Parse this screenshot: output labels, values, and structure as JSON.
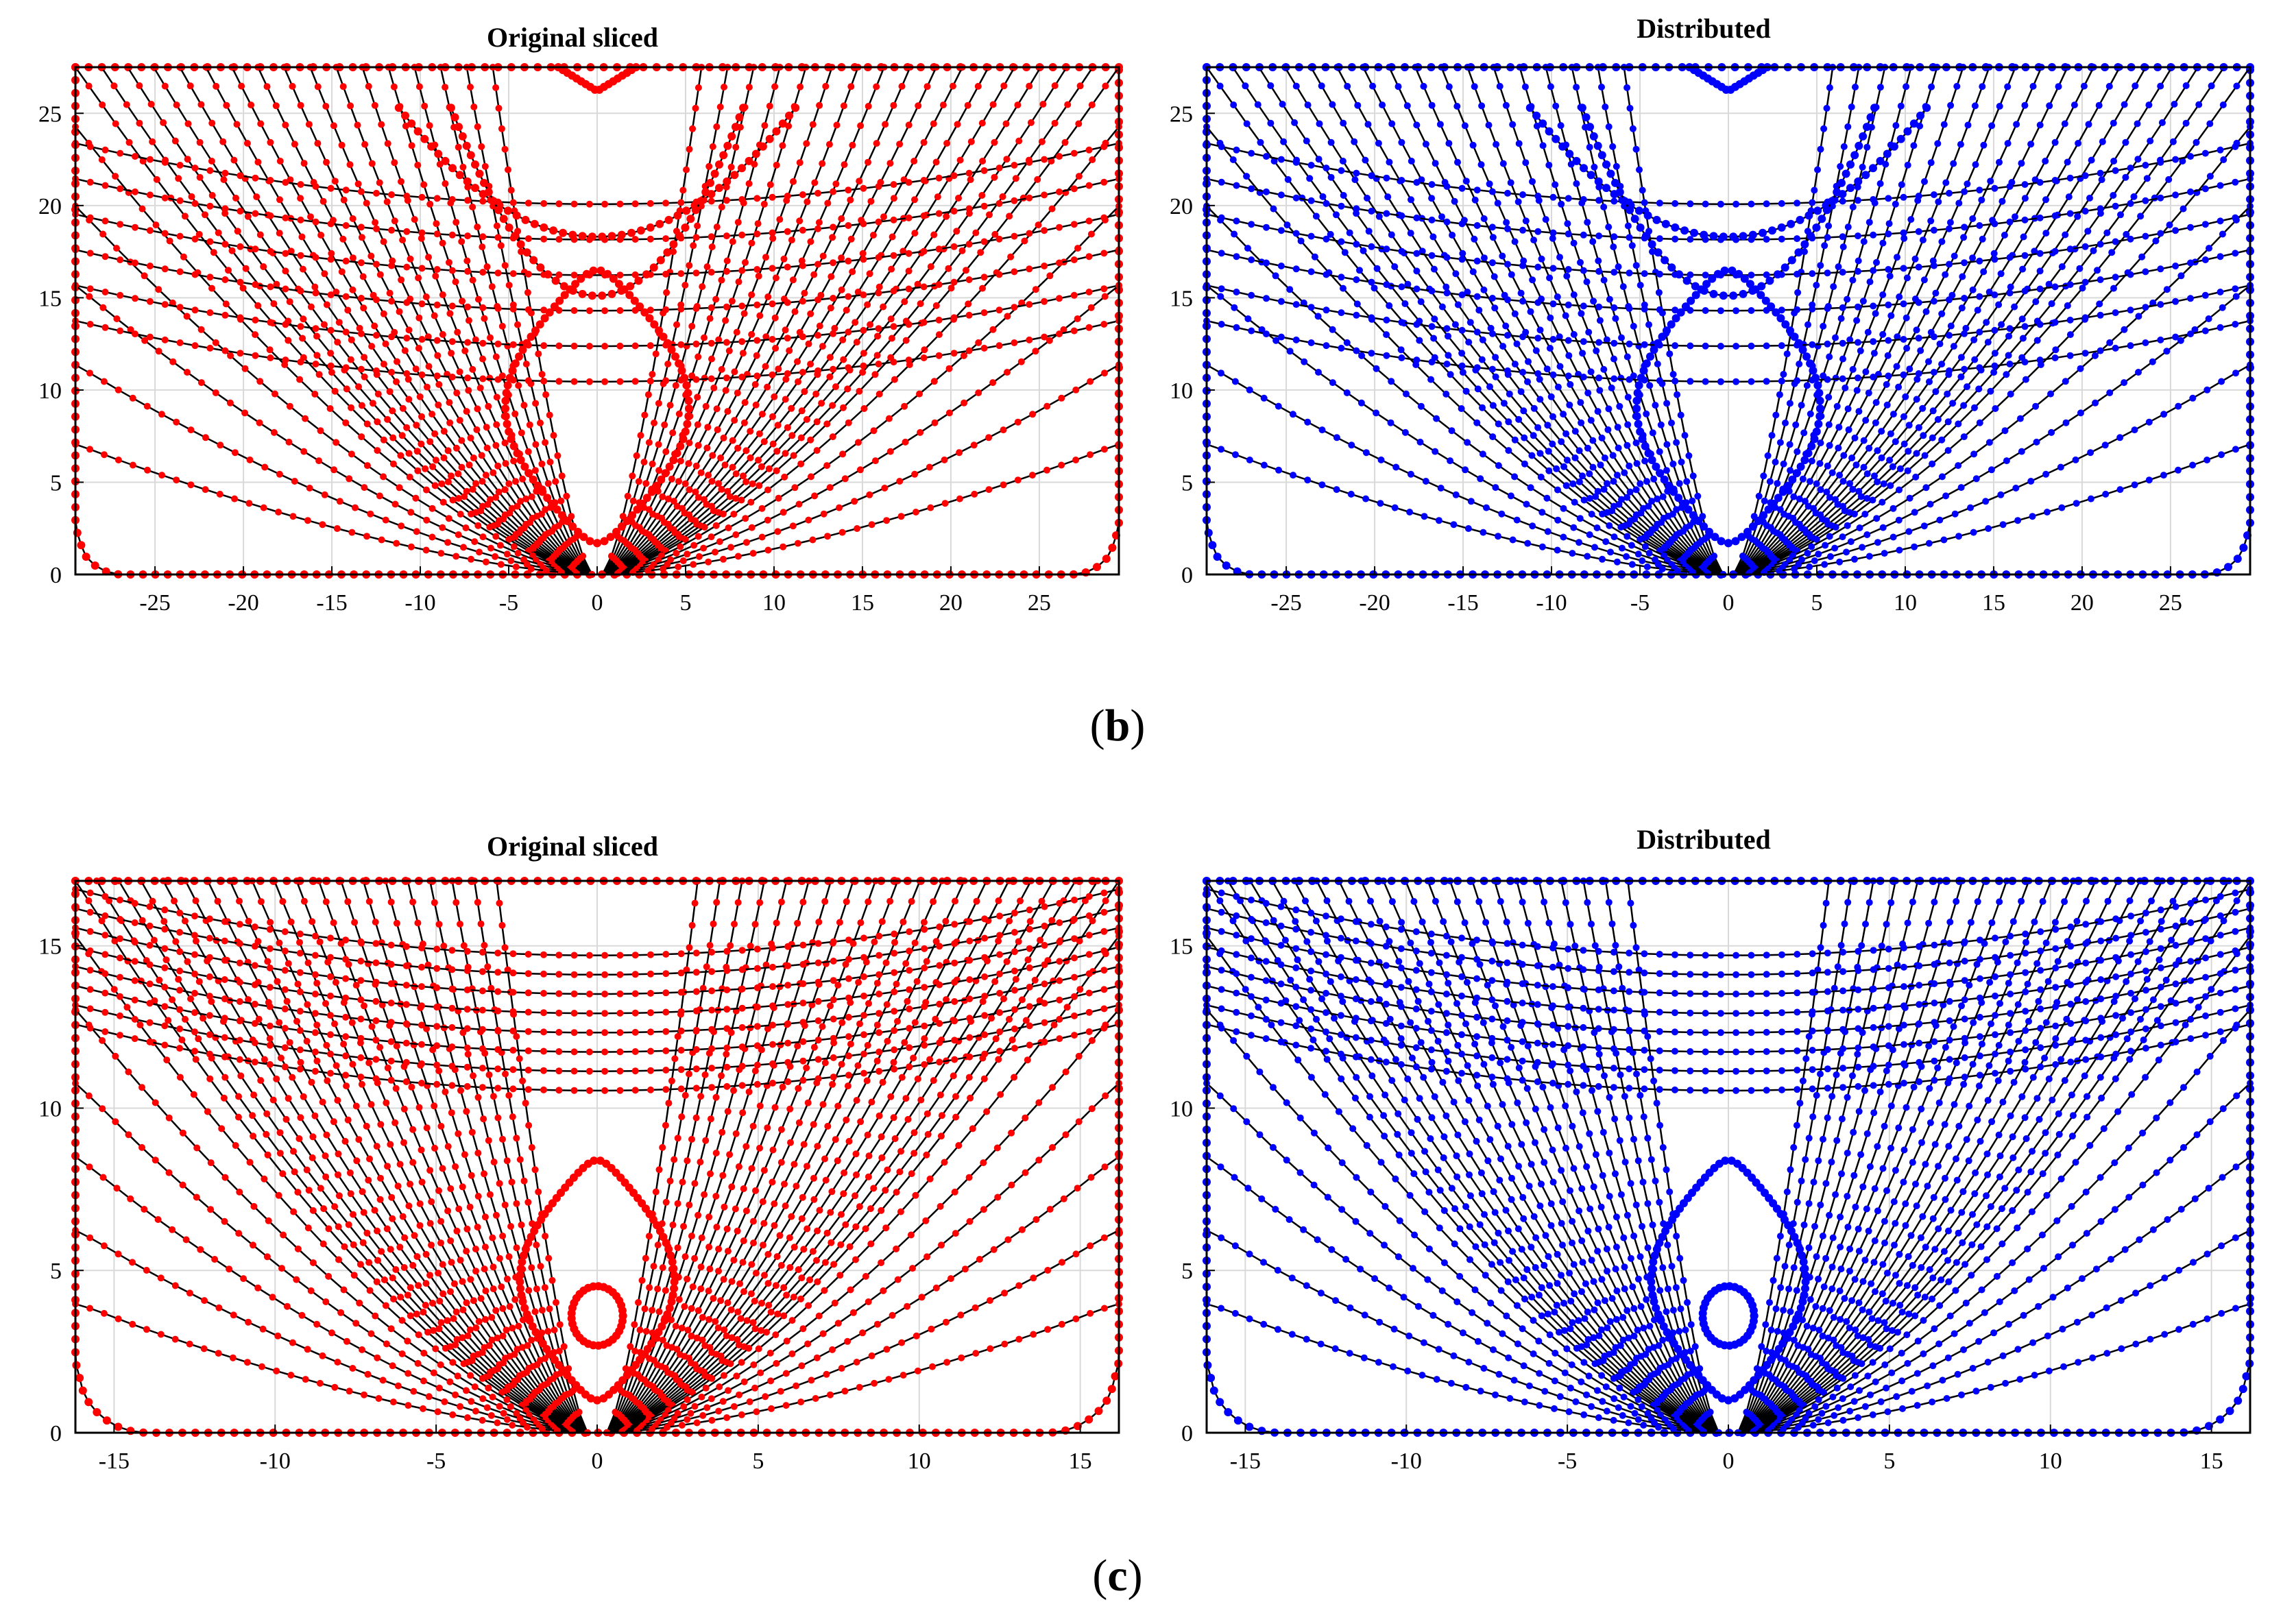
{
  "figure": {
    "panel_labels": [
      {
        "open": "(",
        "letter": "b",
        "close": ")"
      },
      {
        "open": "(",
        "letter": "c",
        "close": ")"
      }
    ]
  },
  "colors": {
    "original_points": "#ff0000",
    "distributed_points": "#0000ff",
    "curve_line": "#000000",
    "grid": "#d9d9d9"
  },
  "chart_data": [
    {
      "type": "scatter",
      "panel": "b",
      "title": "Original sliced",
      "xlabel": "",
      "ylabel": "",
      "xlim": [
        -29.5,
        29.5
      ],
      "ylim": [
        0,
        27.5
      ],
      "xticks": [
        -25,
        -20,
        -15,
        -10,
        -5,
        0,
        5,
        10,
        15,
        20,
        25
      ],
      "yticks": [
        0,
        5,
        10,
        15,
        20,
        25
      ],
      "grid": true,
      "marker_color": "#ff0000",
      "hull_half_width": 29.5,
      "hull_depth": 27.5,
      "key_values": {
        "inner_contour_bottom": 1.7,
        "inner_contour_top": 16.5,
        "top_arc_low": 15.1,
        "upper_arc_low": 18.3,
        "top_notch": 26.2
      }
    },
    {
      "type": "scatter",
      "panel": "b",
      "title": "Distributed",
      "xlabel": "",
      "ylabel": "",
      "xlim": [
        -29.5,
        29.5
      ],
      "ylim": [
        0,
        27.5
      ],
      "xticks": [
        -25,
        -20,
        -15,
        -10,
        -5,
        0,
        5,
        10,
        15,
        20,
        25
      ],
      "yticks": [
        0,
        5,
        10,
        15,
        20,
        25
      ],
      "grid": true,
      "marker_color": "#0000ff",
      "hull_half_width": 29.5,
      "hull_depth": 27.5,
      "key_values": {
        "inner_contour_bottom": 1.7,
        "inner_contour_top": 16.5,
        "top_arc_low": 15.1,
        "upper_arc_low": 18.3,
        "top_notch": 26.2
      }
    },
    {
      "type": "scatter",
      "panel": "c",
      "title": "Original sliced",
      "xlabel": "",
      "ylabel": "",
      "xlim": [
        -16.2,
        16.2
      ],
      "ylim": [
        0,
        17
      ],
      "xticks": [
        -15,
        -10,
        -5,
        0,
        5,
        10,
        15
      ],
      "yticks": [
        0,
        5,
        10,
        15
      ],
      "grid": true,
      "marker_color": "#ff0000",
      "hull_half_width": 16.2,
      "hull_depth": 17,
      "key_values": {
        "inner_contour_bottom": 1.0,
        "inner_contour_top": 8.4,
        "small_loop_center": 3.6,
        "small_loop_radius": 0.8
      }
    },
    {
      "type": "scatter",
      "panel": "c",
      "title": "Distributed",
      "xlabel": "",
      "ylabel": "",
      "xlim": [
        -16.2,
        16.2
      ],
      "ylim": [
        0,
        17
      ],
      "xticks": [
        -15,
        -10,
        -5,
        0,
        5,
        10,
        15
      ],
      "yticks": [
        0,
        5,
        10,
        15
      ],
      "grid": true,
      "marker_color": "#0000ff",
      "hull_half_width": 16.2,
      "hull_depth": 17,
      "key_values": {
        "inner_contour_bottom": 1.0,
        "inner_contour_top": 8.4,
        "small_loop_center": 3.6,
        "small_loop_radius": 0.8
      }
    }
  ]
}
